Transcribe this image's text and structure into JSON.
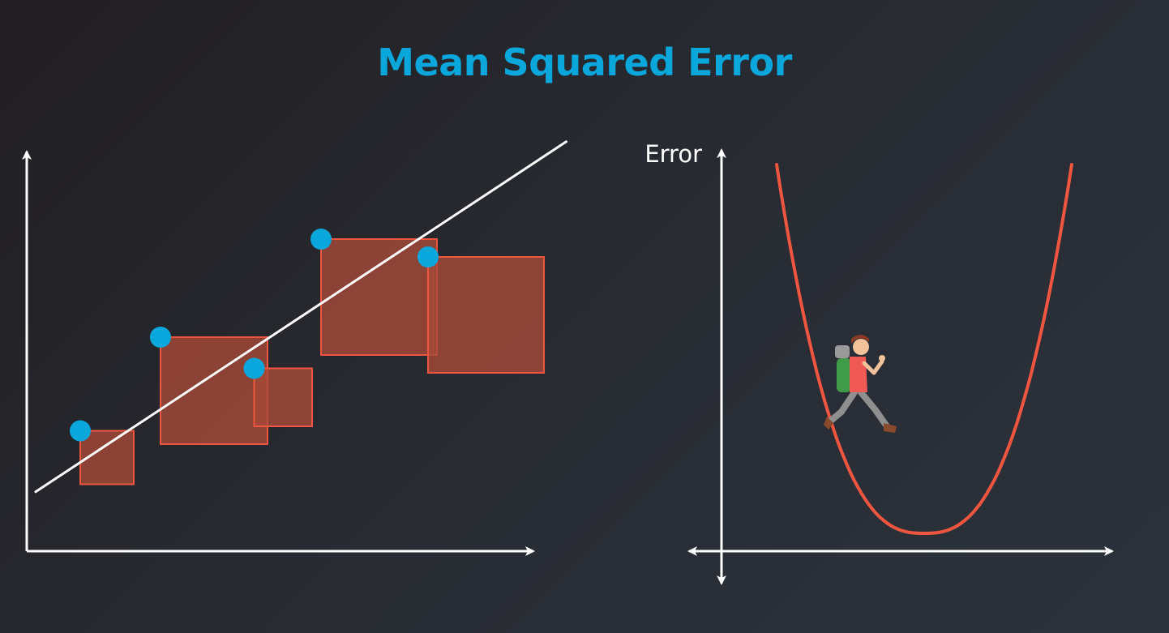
{
  "title": "Mean Squared Error",
  "error_axis_label": "Error",
  "colors": {
    "title": "#0aa7dc",
    "axes": "#ffffff",
    "points": "#0aa7dc",
    "squares_fill": "#a84a38",
    "squares_stroke": "#f0563f",
    "regression_line": "#ffffff",
    "error_curve": "#f0563f"
  },
  "regression": {
    "points": [
      {
        "x": 1.2,
        "y": 2.7,
        "square_side": 1.2
      },
      {
        "x": 3.0,
        "y": 4.8,
        "square_side": 2.4
      },
      {
        "x": 5.1,
        "y": 4.1,
        "square_side": 1.3
      },
      {
        "x": 6.6,
        "y": 7.0,
        "square_side": 2.6
      },
      {
        "x": 9.0,
        "y": 6.6,
        "square_side": 2.6
      }
    ],
    "line": {
      "slope": 0.66,
      "intercept": 1.2
    }
  },
  "error_curve": {
    "shape": "parabola",
    "minimum_label": "",
    "hiker_icon": "hiker-icon"
  }
}
